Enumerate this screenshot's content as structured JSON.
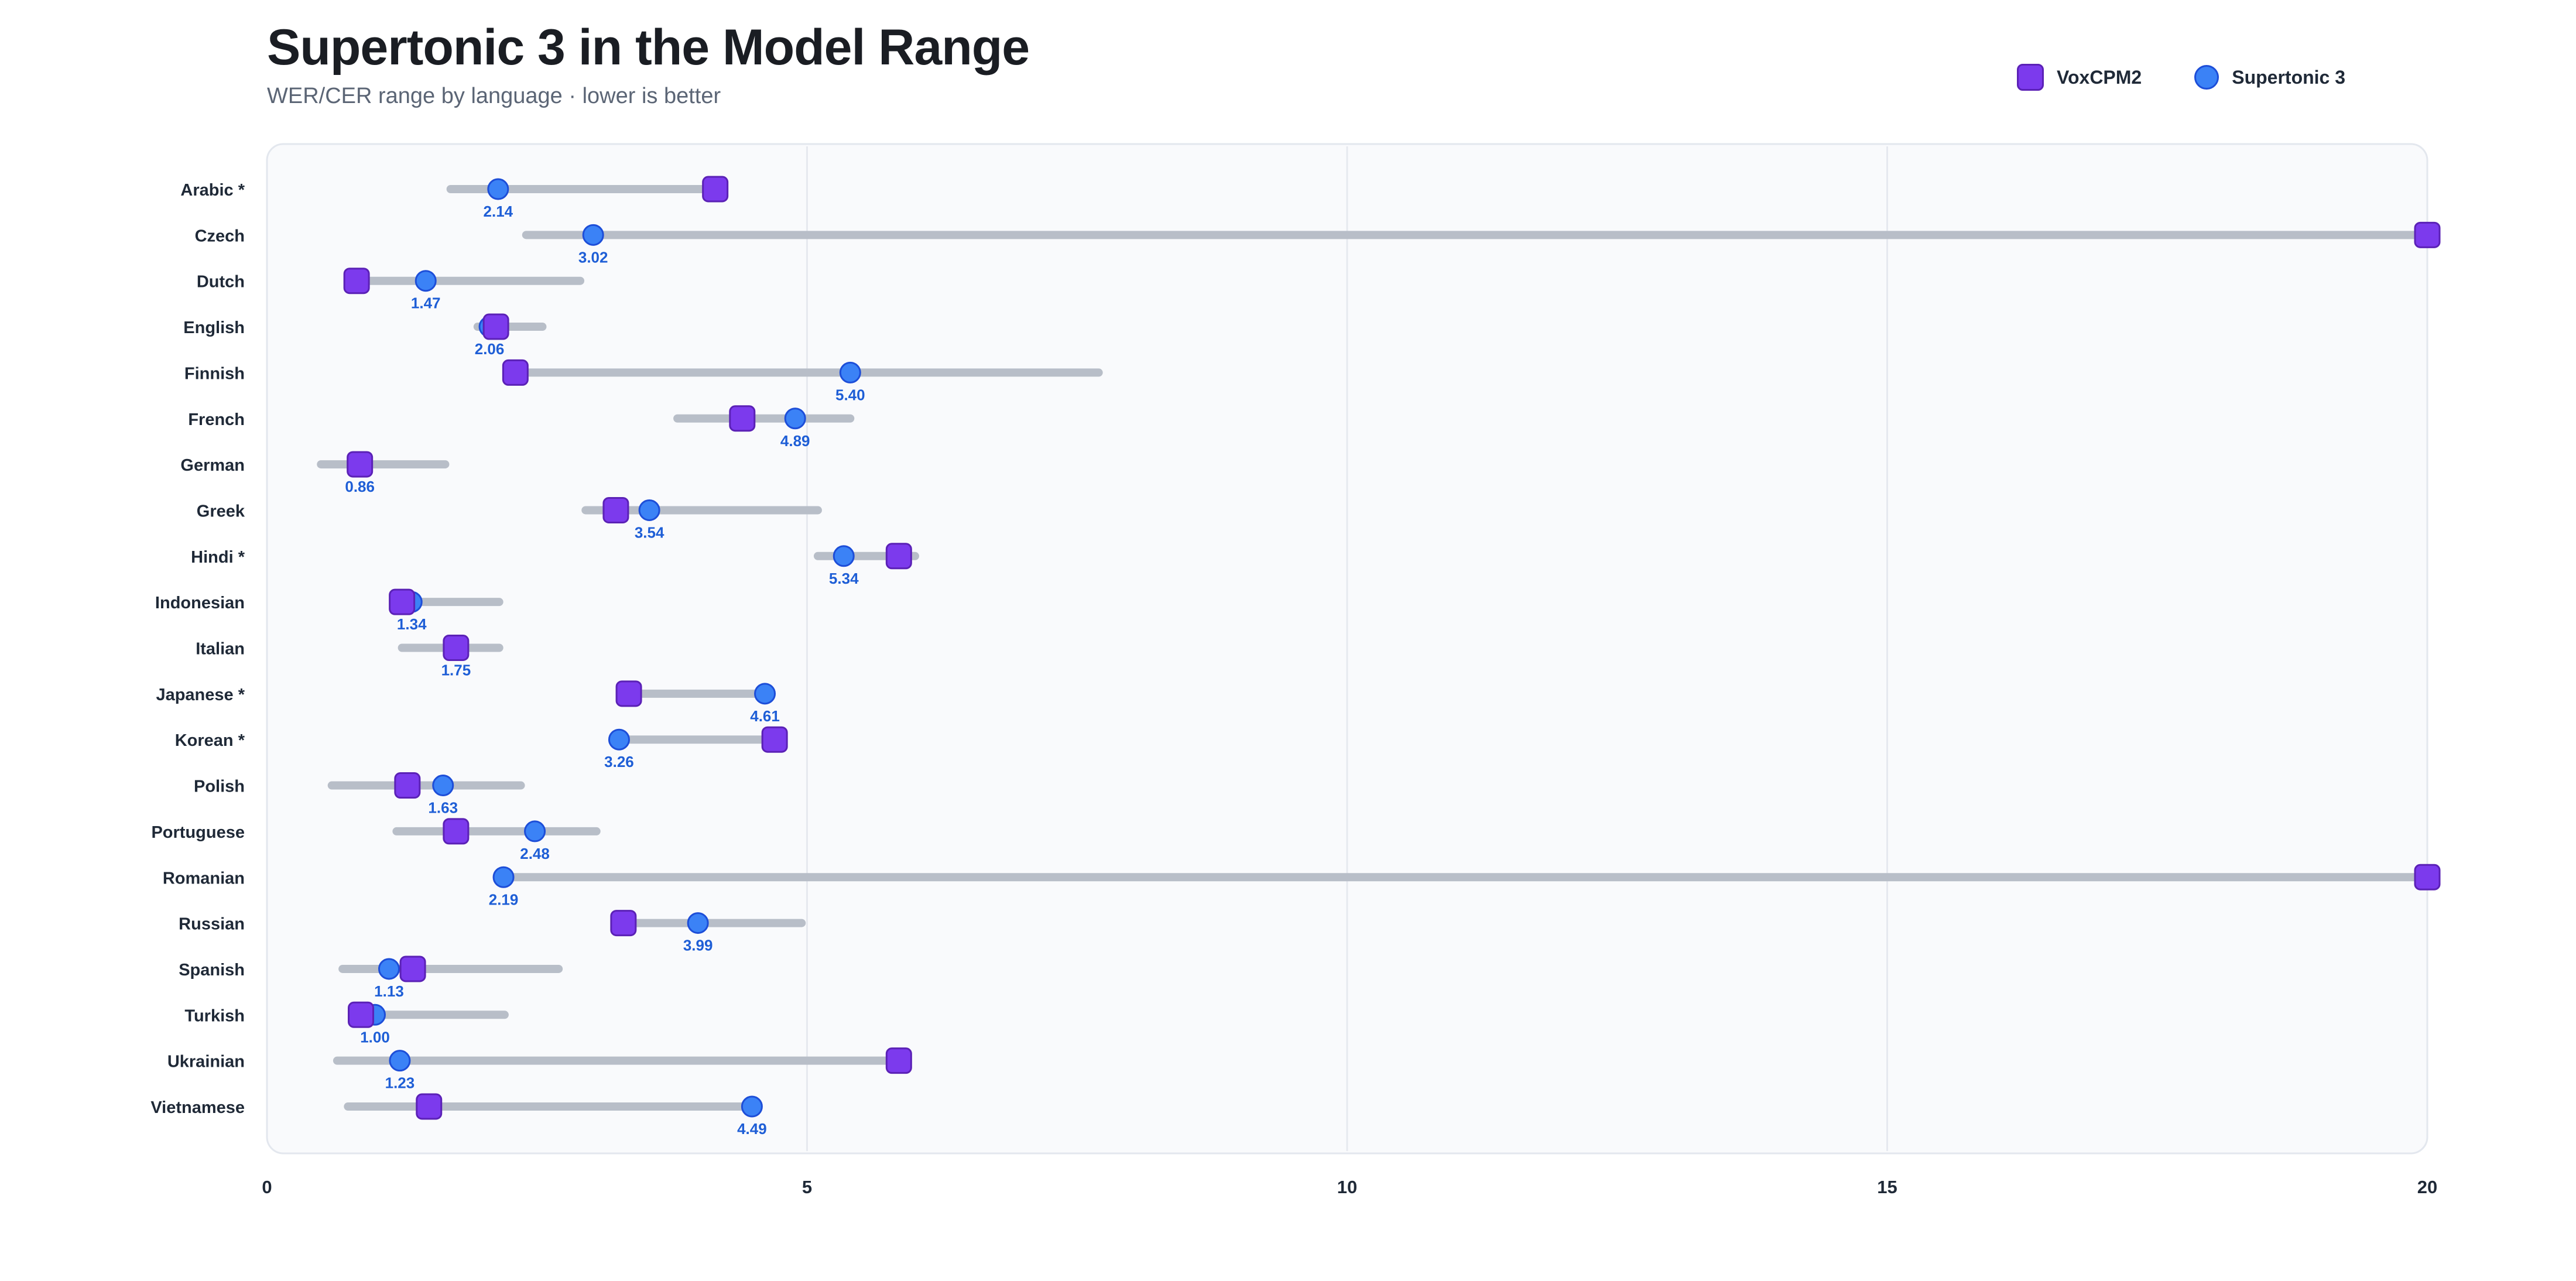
{
  "chart_data": {
    "type": "dumbbell",
    "title": "Supertonic 3 in the Model Range",
    "subtitle": "WER/CER range by language · lower is better",
    "xlabel": "",
    "ylabel": "",
    "xlim": [
      0,
      20
    ],
    "xticks": [
      "0",
      "5",
      "10",
      "15",
      "20"
    ],
    "grid": true,
    "legend_position": "top-right",
    "colors": {
      "voxcpm2": "#7c3aed",
      "supertonic3": "#3b82f6",
      "label": "#1e5ed6",
      "range": "#b8bec8"
    },
    "legend": [
      {
        "name": "VoxCPM2",
        "marker": "square"
      },
      {
        "name": "Supertonic 3",
        "marker": "circle"
      }
    ],
    "rows": [
      {
        "language": "Arabic *",
        "range": [
          1.7,
          4.2
        ],
        "voxcpm2": 4.15,
        "supertonic3": 2.14,
        "label": "2.14"
      },
      {
        "language": "Czech",
        "range": [
          2.4,
          20.0
        ],
        "voxcpm2": 20.0,
        "supertonic3": 3.02,
        "label": "3.02"
      },
      {
        "language": "Dutch",
        "range": [
          0.8,
          2.9
        ],
        "voxcpm2": 0.83,
        "supertonic3": 1.47,
        "label": "1.47"
      },
      {
        "language": "English",
        "range": [
          1.95,
          2.55
        ],
        "voxcpm2": 2.12,
        "supertonic3": 2.06,
        "label": "2.06"
      },
      {
        "language": "Finnish",
        "range": [
          2.25,
          7.7
        ],
        "voxcpm2": 2.3,
        "supertonic3": 5.4,
        "label": "5.40"
      },
      {
        "language": "French",
        "range": [
          3.8,
          5.4
        ],
        "voxcpm2": 4.4,
        "supertonic3": 4.89,
        "label": "4.89"
      },
      {
        "language": "German",
        "range": [
          0.5,
          1.65
        ],
        "voxcpm2": 0.86,
        "supertonic3": 0.86,
        "label": "0.86"
      },
      {
        "language": "Greek",
        "range": [
          2.95,
          5.1
        ],
        "voxcpm2": 3.23,
        "supertonic3": 3.54,
        "label": "3.54"
      },
      {
        "language": "Hindi *",
        "range": [
          5.1,
          6.0
        ],
        "voxcpm2": 5.85,
        "supertonic3": 5.34,
        "label": "5.34"
      },
      {
        "language": "Indonesian",
        "range": [
          1.2,
          2.15
        ],
        "voxcpm2": 1.25,
        "supertonic3": 1.34,
        "label": "1.34"
      },
      {
        "language": "Italian",
        "range": [
          1.25,
          2.15
        ],
        "voxcpm2": 1.75,
        "supertonic3": 1.75,
        "label": "1.75"
      },
      {
        "language": "Japanese *",
        "range": [
          3.35,
          4.61
        ],
        "voxcpm2": 3.35,
        "supertonic3": 4.61,
        "label": "4.61"
      },
      {
        "language": "Korean *",
        "range": [
          3.26,
          4.7
        ],
        "voxcpm2": 4.7,
        "supertonic3": 3.26,
        "label": "3.26"
      },
      {
        "language": "Polish",
        "range": [
          0.6,
          2.35
        ],
        "voxcpm2": 1.3,
        "supertonic3": 1.63,
        "label": "1.63"
      },
      {
        "language": "Portuguese",
        "range": [
          1.2,
          3.05
        ],
        "voxcpm2": 1.75,
        "supertonic3": 2.48,
        "label": "2.48"
      },
      {
        "language": "Romanian",
        "range": [
          2.19,
          20.0
        ],
        "voxcpm2": 20.0,
        "supertonic3": 2.19,
        "label": "2.19"
      },
      {
        "language": "Russian",
        "range": [
          3.3,
          4.95
        ],
        "voxcpm2": 3.3,
        "supertonic3": 3.99,
        "label": "3.99"
      },
      {
        "language": "Spanish",
        "range": [
          0.7,
          2.7
        ],
        "voxcpm2": 1.35,
        "supertonic3": 1.13,
        "label": "1.13"
      },
      {
        "language": "Turkish",
        "range": [
          0.85,
          2.2
        ],
        "voxcpm2": 0.87,
        "supertonic3": 1.0,
        "label": "1.00"
      },
      {
        "language": "Ukrainian",
        "range": [
          0.65,
          5.85
        ],
        "voxcpm2": 5.85,
        "supertonic3": 1.23,
        "label": "1.23"
      },
      {
        "language": "Vietnamese",
        "range": [
          0.75,
          4.49
        ],
        "voxcpm2": 1.5,
        "supertonic3": 4.49,
        "label": "4.49"
      }
    ]
  }
}
